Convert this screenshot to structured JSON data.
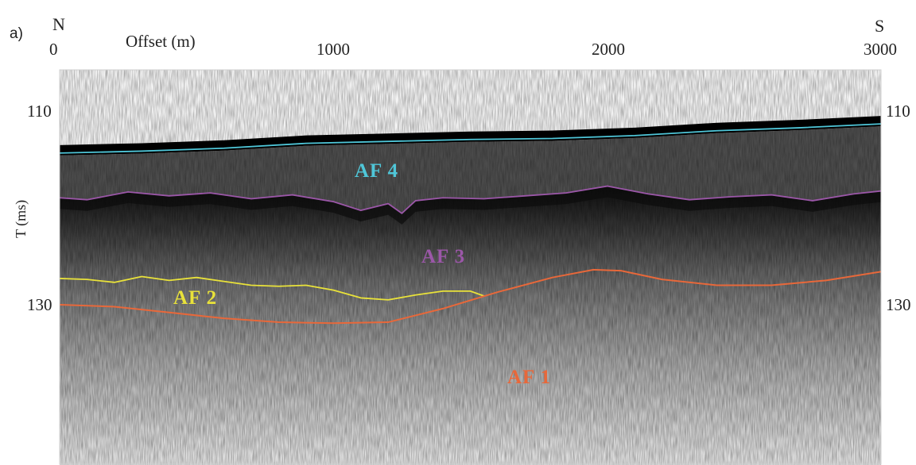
{
  "panel_label": "a)",
  "directions": {
    "left": "N",
    "right": "S"
  },
  "x_axis": {
    "label": "Offset (m)",
    "ticks": [
      "0",
      "1000",
      "2000",
      "3000"
    ]
  },
  "y_axis": {
    "label": "T (ms)",
    "ticks": [
      "110",
      "130"
    ]
  },
  "units": [
    {
      "key": "af4",
      "label": "AF 4",
      "color": "#4fc6d8"
    },
    {
      "key": "af3",
      "label": "AF 3",
      "color": "#9b57a8"
    },
    {
      "key": "af2",
      "label": "AF 2",
      "color": "#e9e23a"
    },
    {
      "key": "af1",
      "label": "AF 1",
      "color": "#e8683a"
    }
  ],
  "horizons": {
    "af4": {
      "color": "#4fc6d8",
      "x": [
        0,
        300,
        600,
        900,
        1200,
        1500,
        1800,
        2100,
        2400,
        2700,
        3000
      ],
      "t": [
        114.4,
        114.2,
        113.9,
        113.4,
        113.2,
        113.0,
        112.9,
        112.6,
        112.1,
        111.8,
        111.4
      ]
    },
    "af3": {
      "color": "#9b57a8",
      "x": [
        0,
        100,
        250,
        400,
        550,
        700,
        850,
        1000,
        1100,
        1200,
        1250,
        1300,
        1400,
        1550,
        1700,
        1850,
        2000,
        2150,
        2300,
        2450,
        2600,
        2750,
        2900,
        3000
      ],
      "t": [
        119.0,
        119.2,
        118.4,
        118.8,
        118.5,
        119.1,
        118.7,
        119.4,
        120.3,
        119.6,
        120.6,
        119.3,
        119.0,
        119.1,
        118.8,
        118.5,
        117.8,
        118.6,
        119.2,
        118.9,
        118.7,
        119.3,
        118.6,
        118.3
      ]
    },
    "af2": {
      "color": "#e9e23a",
      "x": [
        0,
        100,
        200,
        300,
        400,
        500,
        600,
        700,
        800,
        900,
        1000,
        1100,
        1200,
        1300,
        1400,
        1500,
        1550
      ],
      "t": [
        127.3,
        127.4,
        127.7,
        127.1,
        127.5,
        127.2,
        127.6,
        128.0,
        128.1,
        128.0,
        128.5,
        129.3,
        129.5,
        129.0,
        128.6,
        128.6,
        129.1
      ]
    },
    "af1": {
      "color": "#e8683a",
      "x": [
        0,
        200,
        400,
        600,
        800,
        1000,
        1200,
        1400,
        1600,
        1800,
        1950,
        2050,
        2200,
        2400,
        2600,
        2800,
        3000
      ],
      "t": [
        130.0,
        130.2,
        130.8,
        131.4,
        131.8,
        131.9,
        131.8,
        130.4,
        128.7,
        127.2,
        126.4,
        126.5,
        127.4,
        128.0,
        128.0,
        127.5,
        126.6
      ]
    }
  }
}
